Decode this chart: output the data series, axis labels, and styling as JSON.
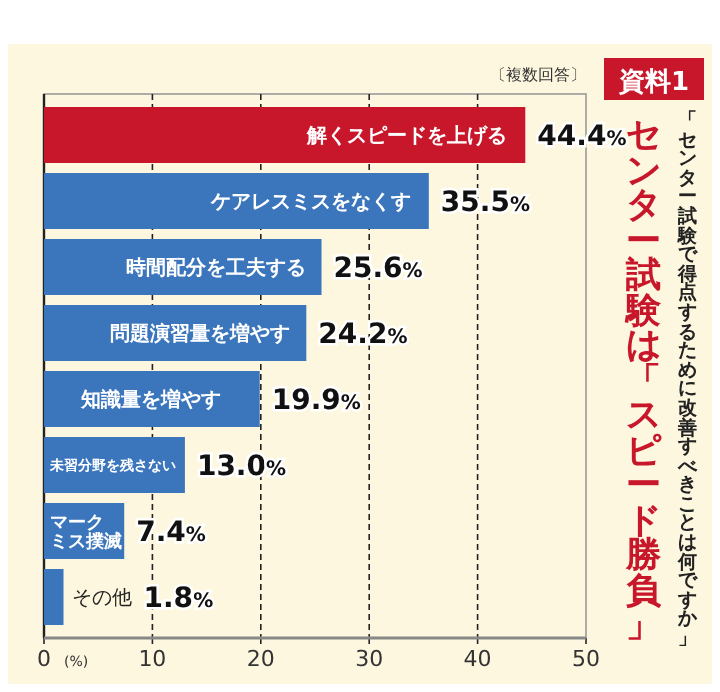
{
  "chart_data": {
    "type": "bar",
    "orientation": "horizontal",
    "title": "センター試験は「スピード勝負」",
    "subtitle": "「センター試験で得点するために改善すべきことは何ですか」",
    "annotations": [
      "資料1",
      "〔複数回答〕"
    ],
    "categories": [
      "解くスピードを上げる",
      "ケアレスミスをなくす",
      "時間配分を工夫する",
      "問題演習量を増やす",
      "知識量を増やす",
      "未習分野を残さない",
      "マークミス撲滅",
      "その他"
    ],
    "values": [
      44.4,
      35.5,
      25.6,
      24.2,
      19.9,
      13.0,
      7.4,
      1.8
    ],
    "value_labels": [
      "44.4%",
      "35.5%",
      "25.6%",
      "24.2%",
      "19.9%",
      "13.0%",
      "7.4%",
      "1.8%"
    ],
    "colors": [
      "#c8162b",
      "#3b76bd",
      "#3b76bd",
      "#3b76bd",
      "#3b76bd",
      "#3b76bd",
      "#3b76bd",
      "#3b76bd"
    ],
    "xlim": [
      0,
      50
    ],
    "xticks": [
      0,
      10,
      20,
      30,
      40,
      50
    ],
    "xlabel": "(%)",
    "grid": "x"
  }
}
